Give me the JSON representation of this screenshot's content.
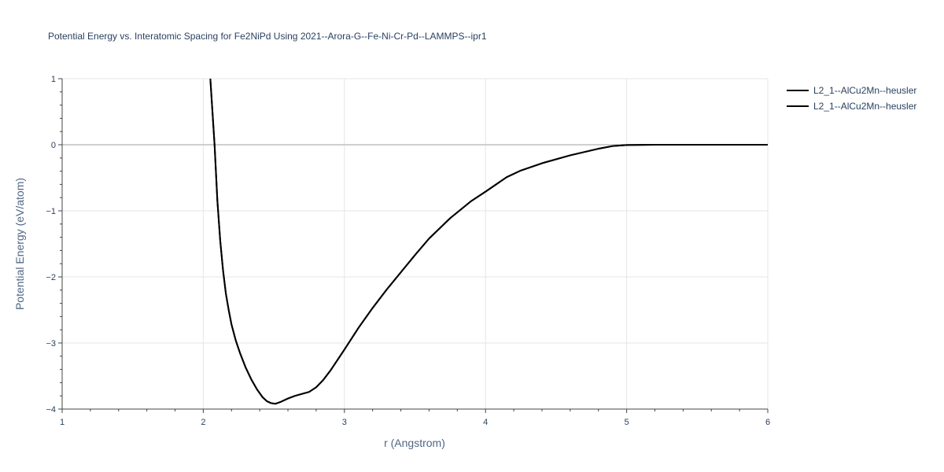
{
  "chart_data": {
    "type": "line",
    "title": "Potential Energy vs. Interatomic Spacing for Fe2NiPd Using 2021--Arora-G--Fe-Ni-Cr-Pd--LAMMPS--ipr1",
    "xlabel": "r (Angstrom)",
    "ylabel": "Potential Energy (eV/atom)",
    "xlim": [
      1,
      6
    ],
    "ylim": [
      -4,
      1
    ],
    "x_ticks": [
      1,
      2,
      3,
      4,
      5,
      6
    ],
    "y_ticks": [
      1,
      0,
      -1,
      -2,
      -3,
      -4
    ],
    "y_tick_labels": [
      "1",
      "0",
      "−1",
      "−2",
      "−3",
      "−4"
    ],
    "grid": true,
    "legend_position": "top-right",
    "line_color": "#000000",
    "series": [
      {
        "name": "L2_1--AlCu2Mn--heusler",
        "x": [
          2.05,
          2.08,
          2.1,
          2.12,
          2.14,
          2.16,
          2.18,
          2.2,
          2.23,
          2.26,
          2.3,
          2.34,
          2.38,
          2.42,
          2.45,
          2.48,
          2.51,
          2.55,
          2.6,
          2.65,
          2.7,
          2.75,
          2.8,
          2.85,
          2.9,
          3.0,
          3.1,
          3.2,
          3.3,
          3.4,
          3.5,
          3.6,
          3.75,
          3.9,
          4.0,
          4.15,
          4.25,
          4.4,
          4.6,
          4.8,
          4.9,
          5.0,
          5.2,
          5.5,
          6.0
        ],
        "y": [
          1.0,
          0.0,
          -0.85,
          -1.45,
          -1.9,
          -2.25,
          -2.5,
          -2.72,
          -2.96,
          -3.15,
          -3.37,
          -3.55,
          -3.7,
          -3.82,
          -3.88,
          -3.91,
          -3.92,
          -3.89,
          -3.84,
          -3.8,
          -3.77,
          -3.74,
          -3.67,
          -3.56,
          -3.42,
          -3.1,
          -2.77,
          -2.47,
          -2.19,
          -1.93,
          -1.67,
          -1.42,
          -1.11,
          -0.85,
          -0.71,
          -0.49,
          -0.39,
          -0.28,
          -0.16,
          -0.06,
          -0.02,
          -0.005,
          0.0,
          0.0,
          0.0
        ]
      },
      {
        "name": "L2_1--AlCu2Mn--heusler",
        "x": [
          2.05,
          2.08,
          2.1,
          2.12,
          2.14,
          2.16,
          2.18,
          2.2,
          2.23,
          2.26,
          2.3,
          2.34,
          2.38,
          2.42,
          2.45,
          2.48,
          2.51,
          2.55,
          2.6,
          2.65,
          2.7,
          2.75,
          2.8,
          2.85,
          2.9,
          3.0,
          3.1,
          3.2,
          3.3,
          3.4,
          3.5,
          3.6,
          3.75,
          3.9,
          4.0,
          4.15,
          4.25,
          4.4,
          4.6,
          4.8,
          4.9,
          5.0,
          5.2,
          5.5,
          6.0
        ],
        "y": [
          1.0,
          0.0,
          -0.85,
          -1.45,
          -1.9,
          -2.25,
          -2.5,
          -2.72,
          -2.96,
          -3.15,
          -3.37,
          -3.55,
          -3.7,
          -3.82,
          -3.88,
          -3.91,
          -3.92,
          -3.89,
          -3.84,
          -3.8,
          -3.77,
          -3.74,
          -3.67,
          -3.56,
          -3.42,
          -3.1,
          -2.77,
          -2.47,
          -2.19,
          -1.93,
          -1.67,
          -1.42,
          -1.11,
          -0.85,
          -0.71,
          -0.49,
          -0.39,
          -0.28,
          -0.16,
          -0.06,
          -0.02,
          -0.005,
          0.0,
          0.0,
          0.0
        ]
      }
    ]
  }
}
